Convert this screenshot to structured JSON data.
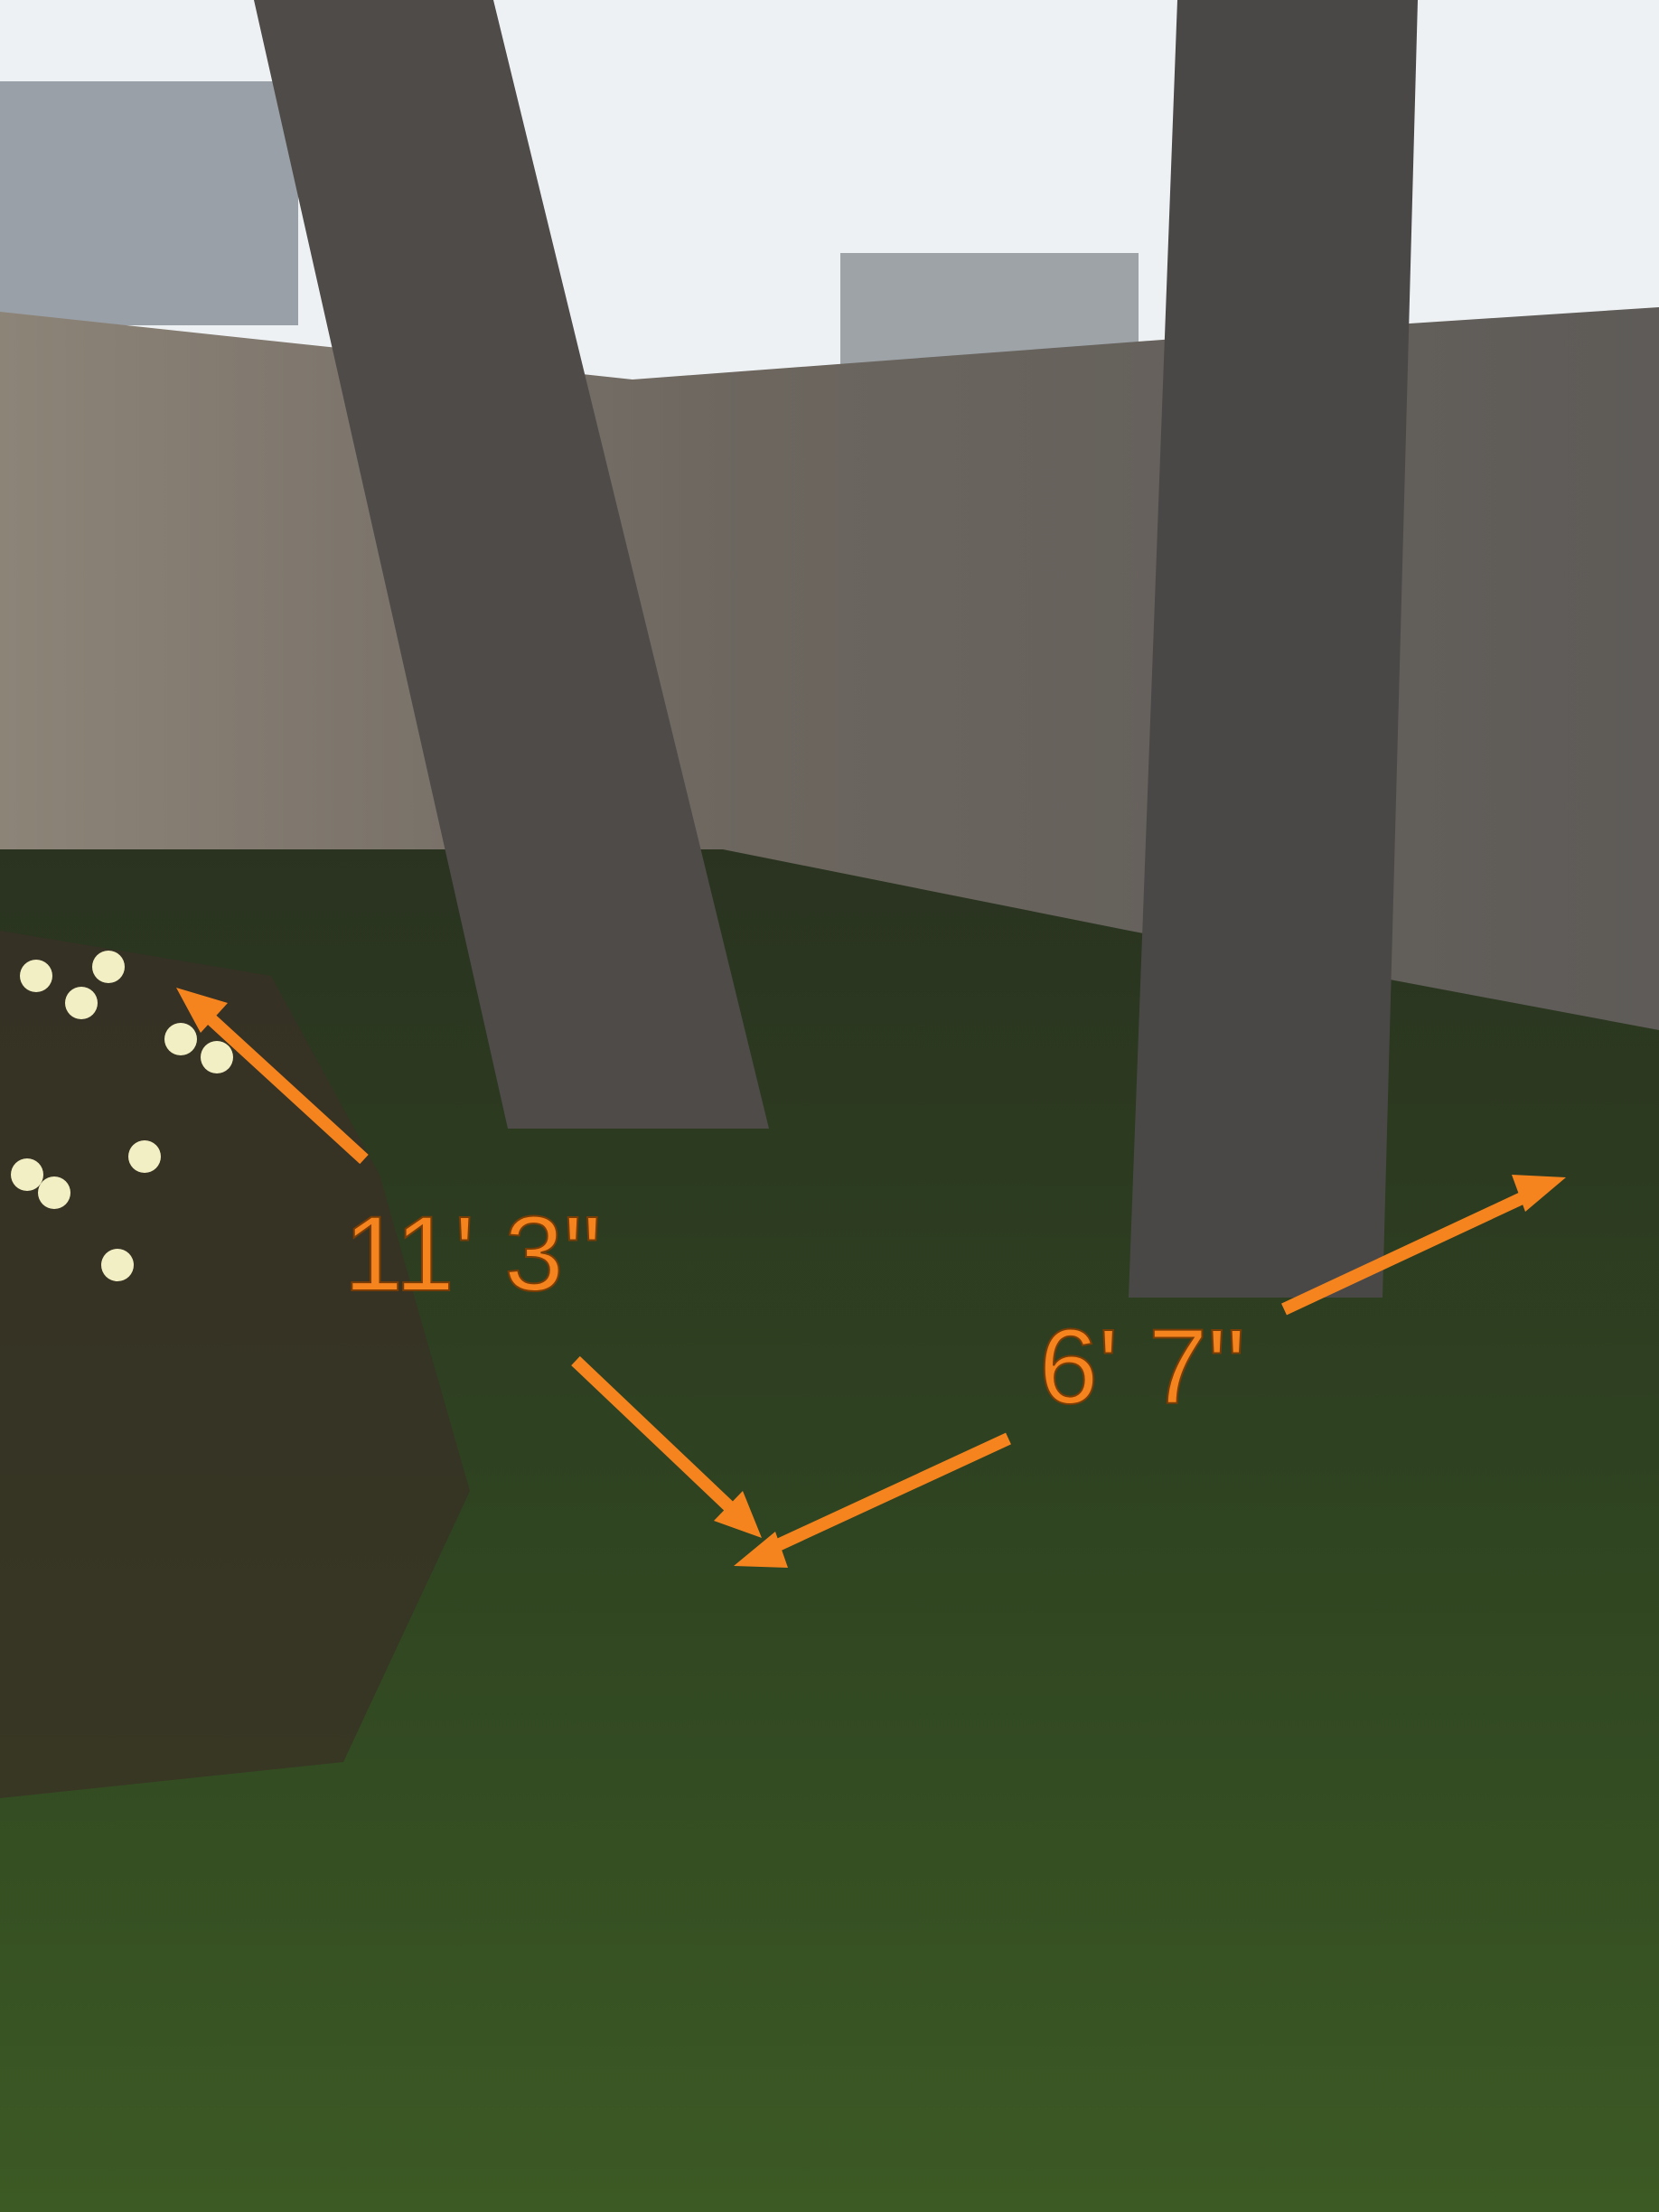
{
  "annotations": [
    {
      "label": "11' 3\""
    },
    {
      "label": "6' 7\""
    }
  ]
}
